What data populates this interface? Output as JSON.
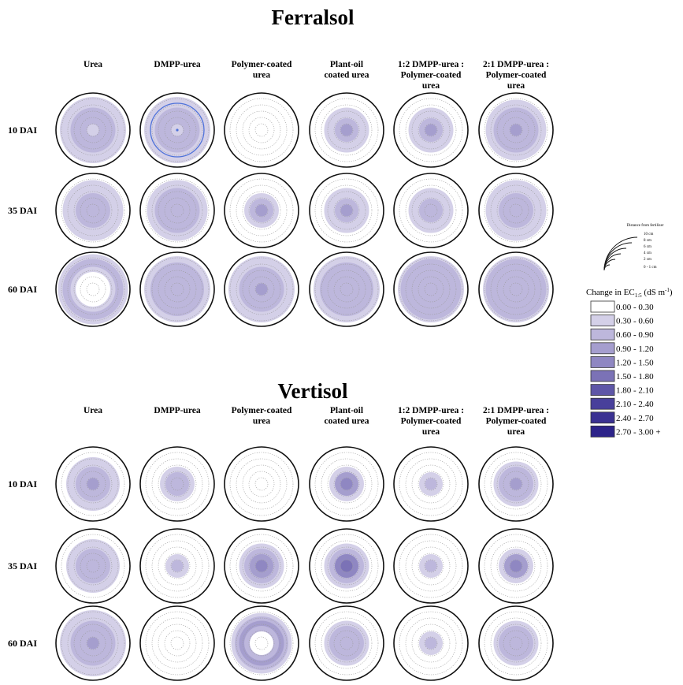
{
  "panels": [
    {
      "title": "Ferralsol",
      "columns": [
        [
          "Urea"
        ],
        [
          "DMPP-urea"
        ],
        [
          "Polymer-coated",
          "urea"
        ],
        [
          "Plant-oil",
          "coated urea"
        ],
        [
          "1:2 DMPP-urea :",
          "Polymer-coated",
          "urea"
        ],
        [
          "2:1 DMPP-urea :",
          "Polymer-coated",
          "urea"
        ]
      ],
      "rows": [
        {
          "label": "10 DAI",
          "cells": [
            {
              "rings": [
                1,
                2,
                2,
                2,
                1,
                1,
                1,
                0
              ]
            },
            {
              "rings": [
                1,
                2,
                2,
                2,
                1,
                1,
                1,
                0
              ],
              "outline_color": "#4f72d9"
            },
            {
              "rings": [
                0,
                0,
                0,
                0,
                0,
                0,
                0,
                0
              ]
            },
            {
              "rings": [
                3,
                2,
                1,
                1,
                0,
                0,
                0,
                0
              ]
            },
            {
              "rings": [
                3,
                2,
                1,
                1,
                0,
                0,
                0,
                0
              ]
            },
            {
              "rings": [
                3,
                2,
                2,
                2,
                1,
                1,
                0,
                0
              ]
            }
          ]
        },
        {
          "label": "35 DAI",
          "cells": [
            {
              "rings": [
                2,
                2,
                2,
                1,
                1,
                1,
                0,
                0
              ]
            },
            {
              "rings": [
                2,
                2,
                2,
                2,
                1,
                1,
                0,
                0
              ]
            },
            {
              "rings": [
                3,
                2,
                1,
                0,
                0,
                0,
                0,
                0
              ]
            },
            {
              "rings": [
                3,
                2,
                1,
                1,
                0,
                0,
                0,
                0
              ]
            },
            {
              "rings": [
                2,
                2,
                1,
                1,
                0,
                0,
                0,
                0
              ]
            },
            {
              "rings": [
                2,
                2,
                2,
                1,
                1,
                1,
                0,
                0
              ]
            }
          ]
        },
        {
          "label": "60 DAI",
          "cells": [
            {
              "rings": [
                0,
                0,
                0,
                1,
                2,
                2,
                1,
                1
              ]
            },
            {
              "rings": [
                2,
                2,
                2,
                2,
                2,
                1,
                1,
                0
              ]
            },
            {
              "rings": [
                3,
                2,
                2,
                2,
                1,
                1,
                1,
                0
              ]
            },
            {
              "rings": [
                2,
                2,
                2,
                2,
                2,
                1,
                1,
                0
              ]
            },
            {
              "rings": [
                2,
                2,
                2,
                2,
                2,
                2,
                1,
                0
              ]
            },
            {
              "rings": [
                2,
                2,
                2,
                2,
                2,
                2,
                1,
                0
              ]
            }
          ]
        }
      ]
    },
    {
      "title": "Vertisol",
      "columns": [
        [
          "Urea"
        ],
        [
          "DMPP-urea"
        ],
        [
          "Polymer-coated",
          "urea"
        ],
        [
          "Plant-oil",
          "coated urea"
        ],
        [
          "1:2 DMPP-urea :",
          "Polymer-coated",
          "urea"
        ],
        [
          "2:1 DMPP-urea :",
          "Polymer-coated",
          "urea"
        ]
      ],
      "rows": [
        {
          "label": "10 DAI",
          "cells": [
            {
              "rings": [
                3,
                2,
                2,
                1,
                1,
                0,
                0,
                0
              ]
            },
            {
              "rings": [
                2,
                2,
                1,
                0,
                0,
                0,
                0,
                0
              ]
            },
            {
              "rings": [
                0,
                0,
                0,
                0,
                0,
                0,
                0,
                0
              ]
            },
            {
              "rings": [
                4,
                3,
                1,
                0,
                0,
                0,
                0,
                0
              ]
            },
            {
              "rings": [
                2,
                1,
                0,
                0,
                0,
                0,
                0,
                0
              ]
            },
            {
              "rings": [
                3,
                2,
                2,
                1,
                0,
                0,
                0,
                0
              ]
            }
          ]
        },
        {
          "label": "35 DAI",
          "cells": [
            {
              "rings": [
                2,
                2,
                2,
                1,
                1,
                0,
                0,
                0
              ]
            },
            {
              "rings": [
                2,
                1,
                0,
                0,
                0,
                0,
                0,
                0
              ]
            },
            {
              "rings": [
                4,
                3,
                2,
                1,
                0,
                0,
                0,
                0
              ]
            },
            {
              "rings": [
                5,
                4,
                2,
                1,
                0,
                0,
                0,
                0
              ]
            },
            {
              "rings": [
                2,
                1,
                0,
                0,
                0,
                0,
                0,
                0
              ]
            },
            {
              "rings": [
                4,
                3,
                1,
                0,
                0,
                0,
                0,
                0
              ]
            }
          ]
        },
        {
          "label": "60 DAI",
          "cells": [
            {
              "rings": [
                3,
                2,
                2,
                2,
                1,
                1,
                1,
                0
              ]
            },
            {
              "rings": [
                0,
                0,
                0,
                0,
                0,
                0,
                0,
                0
              ]
            },
            {
              "rings": [
                0,
                0,
                2,
                3,
                2,
                1,
                0,
                0
              ]
            },
            {
              "rings": [
                2,
                2,
                2,
                1,
                0,
                0,
                0,
                0
              ]
            },
            {
              "rings": [
                2,
                1,
                0,
                0,
                0,
                0,
                0,
                0
              ]
            },
            {
              "rings": [
                2,
                2,
                2,
                1,
                0,
                0,
                0,
                0
              ]
            }
          ]
        }
      ]
    }
  ],
  "legend": {
    "distance_title": "Distance from fertilizer",
    "distance_labels": [
      "10 cm",
      "8 cm",
      "6 cm",
      "4 cm",
      "2 cm",
      "0 - 1 cm"
    ],
    "ec_title_prefix": "Change in EC",
    "ec_title_sub": "1:5",
    "ec_title_suffix": " (dS m",
    "ec_title_sup": "-1",
    "ec_title_end": ")",
    "classes": [
      {
        "label": "0.00 - 0.30",
        "color": "#ffffff"
      },
      {
        "label": "0.30 - 0.60",
        "color": "#d4d0e8"
      },
      {
        "label": "0.60 - 0.90",
        "color": "#bdb7dc"
      },
      {
        "label": "0.90 - 1.20",
        "color": "#a59ece"
      },
      {
        "label": "1.20 - 1.50",
        "color": "#8f87c2"
      },
      {
        "label": "1.50 - 1.80",
        "color": "#7b72b6"
      },
      {
        "label": "1.80 - 2.10",
        "color": "#5e56a7"
      },
      {
        "label": "2.10 - 2.40",
        "color": "#48409b"
      },
      {
        "label": "2.40 - 2.70",
        "color": "#3a3192"
      },
      {
        "label": "2.70 - 3.00 +",
        "color": "#2c2389"
      }
    ]
  }
}
